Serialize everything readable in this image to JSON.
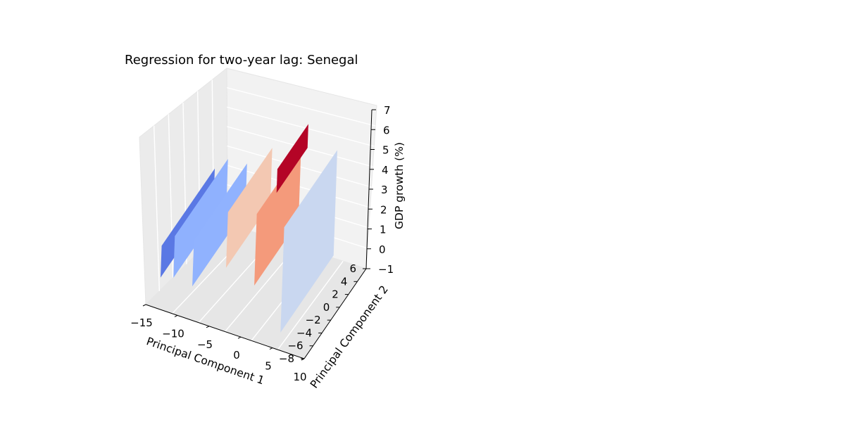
{
  "chart_data": {
    "type": "surface",
    "title": "Regression for two-year lag: Senegal",
    "xlabel": "Principal Component 1",
    "ylabel": "Principal Component 2",
    "zlabel": "GDP growth (%)",
    "x_ticks": [
      "−15",
      "−10",
      "−5",
      "0",
      "5",
      "10"
    ],
    "y_ticks": [
      "−8",
      "−6",
      "−4",
      "−2",
      "0",
      "2",
      "4",
      "6"
    ],
    "z_ticks": [
      "−1",
      "0",
      "1",
      "2",
      "3",
      "4",
      "5",
      "6",
      "7"
    ],
    "xlim": [
      -15,
      10
    ],
    "ylim": [
      -8,
      6
    ],
    "zlim": [
      -1,
      7
    ],
    "colormap": "coolwarm",
    "grid": true,
    "surface": [
      {
        "color": "#5a78e4",
        "x": -13.5,
        "y": [
          -7,
          5
        ],
        "z": [
          0.2,
          1.8
        ]
      },
      {
        "color": "#8fb1fe",
        "x": -11.5,
        "y": [
          -7,
          5
        ],
        "z": [
          0.4,
          2.5
        ]
      },
      {
        "color": "#90b2fe",
        "x": -8.5,
        "y": [
          -7,
          5
        ],
        "z": [
          0.3,
          2.6
        ]
      },
      {
        "color": "#f3c8b2",
        "x": -4.0,
        "y": [
          -6,
          4
        ],
        "z": [
          1.4,
          4.2
        ]
      },
      {
        "color": "#f49a7b",
        "x": 0.5,
        "y": [
          -6,
          4
        ],
        "z": [
          1.0,
          4.6
        ]
      },
      {
        "color": "#b40426",
        "x": 1.5,
        "y": [
          -3,
          4
        ],
        "z": [
          4.8,
          6.0
        ]
      },
      {
        "color": "#c9d7f0",
        "x": 5.5,
        "y": [
          -7,
          5
        ],
        "z": [
          -0.5,
          4.8
        ]
      }
    ]
  }
}
